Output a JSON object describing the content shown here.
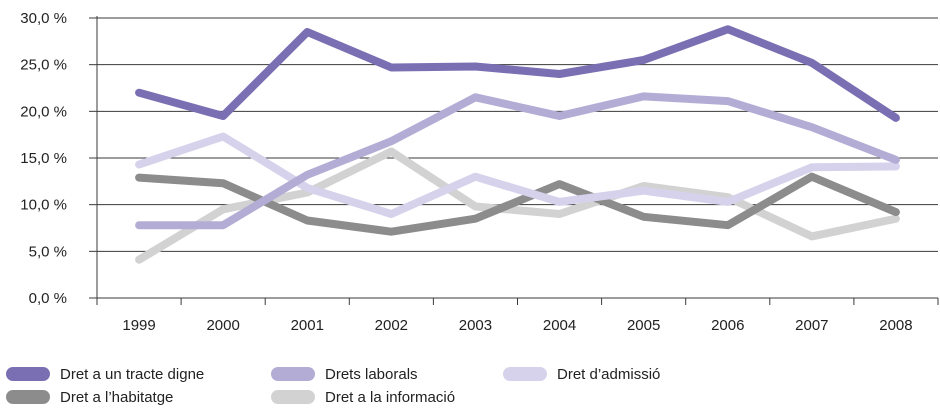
{
  "chart_data": {
    "type": "line",
    "x": [
      "1999",
      "2000",
      "2001",
      "2002",
      "2003",
      "2004",
      "2005",
      "2006",
      "2007",
      "2008"
    ],
    "y_ticks": [
      "0,0 %",
      "5,0 %",
      "10,0 %",
      "15,0 %",
      "20,0 %",
      "25,0 %",
      "30,0 %"
    ],
    "ylim": [
      0,
      30
    ],
    "grid": true,
    "legend_placement": "bottom",
    "series": [
      {
        "name": "Dret a un tracte digne",
        "color": "#7a6fb3",
        "values": [
          22.0,
          19.5,
          28.5,
          24.7,
          24.8,
          24.0,
          25.5,
          28.8,
          25.2,
          19.3
        ]
      },
      {
        "name": "Drets laborals",
        "color": "#b3add6",
        "values": [
          7.8,
          7.8,
          13.2,
          16.8,
          21.5,
          19.5,
          21.6,
          21.1,
          18.3,
          14.8
        ]
      },
      {
        "name": "Dret d’admissió",
        "color": "#d6d2eb",
        "values": [
          14.3,
          17.3,
          11.8,
          9.0,
          13.0,
          10.3,
          11.5,
          10.3,
          14.0,
          14.1
        ]
      },
      {
        "name": "Dret a l’habitatge",
        "color": "#8c8c8c",
        "values": [
          12.9,
          12.3,
          8.3,
          7.1,
          8.5,
          12.2,
          8.7,
          7.8,
          13.0,
          9.2
        ]
      },
      {
        "name": "Dret a la informació",
        "color": "#d2d2d2",
        "values": [
          4.1,
          9.5,
          11.3,
          15.7,
          9.8,
          9.0,
          12.0,
          10.8,
          6.6,
          8.5
        ]
      }
    ]
  }
}
